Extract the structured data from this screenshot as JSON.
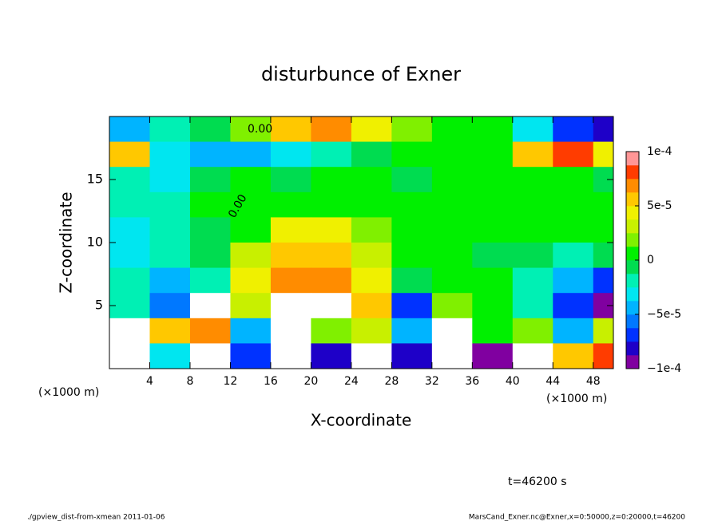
{
  "chart_data": {
    "type": "heatmap",
    "title": "disturbunce of Exner",
    "xlabel": "X-coordinate",
    "ylabel": "Z-coordinate",
    "x_unit_label": "(×1000 m)",
    "contour_label": "0.00",
    "time_label": "t=46200 s",
    "footer_left": "./gpview_dist-from-xmean  2011-01-06",
    "footer_right": "MarsCand_Exner.nc@Exner,x=0:50000,z=0:20000,t=46200",
    "xlim": [
      0,
      50
    ],
    "ylim": [
      0,
      20
    ],
    "xticks": [
      4,
      8,
      12,
      16,
      20,
      24,
      28,
      32,
      36,
      40,
      44,
      48
    ],
    "yticks": [
      5,
      10,
      15
    ],
    "x": [
      2,
      6,
      10,
      14,
      18,
      22,
      26,
      30,
      34,
      38,
      42,
      46,
      50
    ],
    "y": [
      19,
      17,
      15,
      13,
      11,
      9,
      7,
      5,
      3,
      1
    ],
    "z": [
      [
        -4e-05,
        -2e-05,
        -1e-05,
        2e-05,
        6e-05,
        7e-05,
        4e-05,
        2e-05,
        1e-05,
        0,
        -3e-05,
        -7e-05,
        -8e-05
      ],
      [
        6e-05,
        -3e-05,
        -5e-05,
        -4e-05,
        -3e-05,
        -2e-05,
        -1e-05,
        0,
        0,
        1e-05,
        6e-05,
        8e-05,
        4e-05
      ],
      [
        -2e-05,
        -3e-05,
        -1e-05,
        0,
        -1e-05,
        0,
        0,
        -1e-05,
        1e-05,
        1e-05,
        1e-05,
        0,
        -1e-05
      ],
      [
        -2e-05,
        -2e-05,
        0,
        1e-05,
        1e-05,
        1e-05,
        1e-05,
        0,
        1e-05,
        1e-05,
        1e-05,
        0,
        0
      ],
      [
        -3e-05,
        -2e-05,
        -1e-05,
        1e-05,
        4e-05,
        4e-05,
        2e-05,
        0,
        0,
        0,
        0,
        0,
        0
      ],
      [
        -3e-05,
        -2e-05,
        -1e-05,
        3e-05,
        6e-05,
        5e-05,
        3e-05,
        0,
        0,
        -1e-05,
        -1e-05,
        -2e-05,
        -1e-05
      ],
      [
        -2e-05,
        -4e-05,
        -2e-05,
        4e-05,
        7e-05,
        7e-05,
        4e-05,
        -1e-05,
        0,
        0,
        -2e-05,
        -4e-05,
        -7e-05
      ],
      [
        -2e-05,
        -6e-05,
        0.0001,
        3e-05,
        0.0001,
        0.0001,
        6e-05,
        -7e-05,
        2e-05,
        0,
        -2e-05,
        -7e-05,
        -0.0001
      ],
      [
        0.0001,
        5e-05,
        7e-05,
        -4e-05,
        0.0001,
        2e-05,
        3e-05,
        -5e-05,
        0.0001,
        1e-05,
        2e-05,
        -4e-05,
        3e-05
      ],
      [
        0.0001,
        -3e-05,
        0.0001,
        -7e-05,
        0.0001,
        -8e-05,
        0.0001,
        -8e-05,
        0.0001,
        -9e-05,
        0.0001,
        6e-05,
        8e-05
      ]
    ],
    "clim": [
      -0.0001,
      0.0001
    ],
    "colors": [
      "#8000a0",
      "#1e00c8",
      "#0032ff",
      "#0078ff",
      "#00b4ff",
      "#00e6f0",
      "#00f0b4",
      "#00dc50",
      "#00f000",
      "#80f000",
      "#c8f000",
      "#f0f000",
      "#ffc800",
      "#ff8c00",
      "#ff3c00",
      "#ff9696"
    ],
    "above_color": "#ffffff",
    "cticks": [
      {
        "value": 0.0001,
        "label": "1e-4"
      },
      {
        "value": 5e-05,
        "label": "5e-5"
      },
      0,
      {
        "value": -5e-05,
        "label": "−5e-5"
      },
      {
        "value": -0.0001,
        "label": "−1e-4"
      }
    ]
  }
}
